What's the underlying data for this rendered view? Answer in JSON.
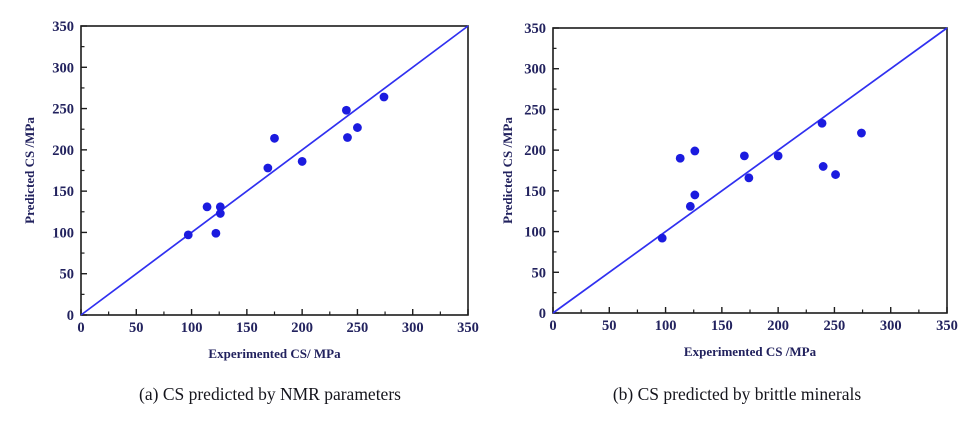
{
  "palette": {
    "background": "#ffffff",
    "frame": "#1c1c1c",
    "tick_text": "#22225e",
    "caption_text": "#15151c",
    "series_blue": "#1b1bdf",
    "line_blue": "#3030f0"
  },
  "chart_data": [
    {
      "type": "scatter",
      "caption": "(a) CS predicted by NMR parameters",
      "xlabel": "Experimented CS/ MPa",
      "ylabel": "Predicted CS /MPa",
      "xlim": [
        0,
        350
      ],
      "ylim": [
        0,
        350
      ],
      "major_ticks": [
        0,
        50,
        100,
        150,
        200,
        250,
        300,
        350
      ],
      "minor_ticks": [
        25,
        75,
        125,
        175,
        225,
        275,
        325
      ],
      "grid": false,
      "legend": "none",
      "reference_line": {
        "from": [
          0,
          0
        ],
        "to": [
          350,
          350
        ],
        "color": "#3030f0",
        "meaning": "y = x identity line"
      },
      "point_color": "#1b1bdf",
      "points": [
        [
          97,
          97
        ],
        [
          114,
          131
        ],
        [
          122,
          99
        ],
        [
          126,
          131
        ],
        [
          126,
          123
        ],
        [
          169,
          178
        ],
        [
          175,
          214
        ],
        [
          200,
          186
        ],
        [
          240,
          248
        ],
        [
          241,
          215
        ],
        [
          250,
          227
        ],
        [
          274,
          264
        ]
      ]
    },
    {
      "type": "scatter",
      "caption": "(b) CS predicted by brittle minerals",
      "xlabel": "Experimented CS /MPa",
      "ylabel": "Predicted CS /MPa",
      "xlim": [
        0,
        350
      ],
      "ylim": [
        0,
        350
      ],
      "major_ticks": [
        0,
        50,
        100,
        150,
        200,
        250,
        300,
        350
      ],
      "minor_ticks": [
        25,
        75,
        125,
        175,
        225,
        275,
        325
      ],
      "grid": false,
      "legend": "none",
      "reference_line": {
        "from": [
          0,
          0
        ],
        "to": [
          350,
          350
        ],
        "color": "#3030f0",
        "meaning": "y = x identity line"
      },
      "point_color": "#1b1bdf",
      "points": [
        [
          97,
          92
        ],
        [
          113,
          190
        ],
        [
          122,
          131
        ],
        [
          126,
          145
        ],
        [
          126,
          199
        ],
        [
          170,
          193
        ],
        [
          174,
          166
        ],
        [
          200,
          193
        ],
        [
          239,
          233
        ],
        [
          240,
          180
        ],
        [
          251,
          170
        ],
        [
          274,
          221
        ]
      ]
    }
  ]
}
